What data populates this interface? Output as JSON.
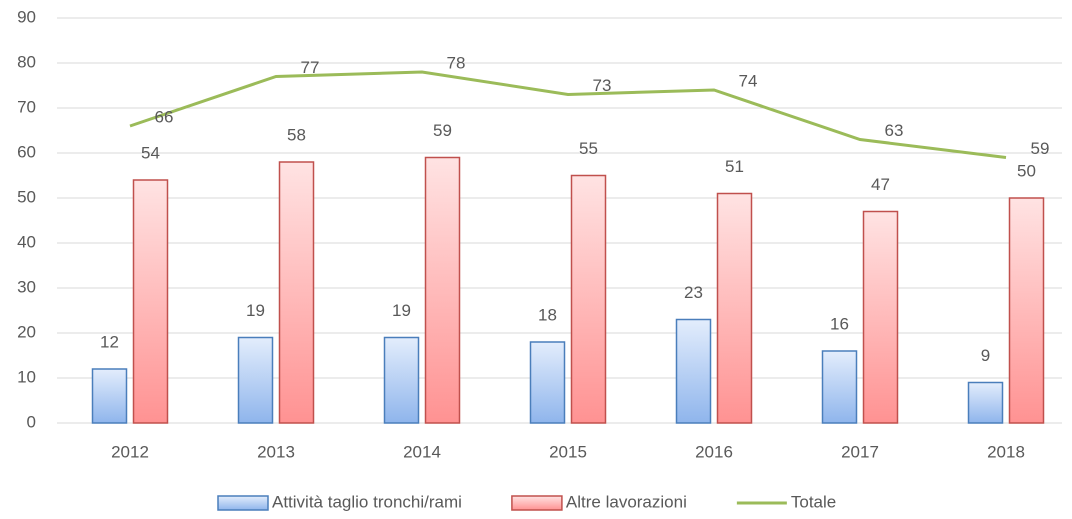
{
  "chart_data": {
    "type": "bar",
    "categories": [
      "2012",
      "2013",
      "2014",
      "2015",
      "2016",
      "2017",
      "2018"
    ],
    "series": [
      {
        "name": "Attività taglio tronchi/rami",
        "color": "#4a7ebb",
        "values": [
          12,
          19,
          19,
          18,
          23,
          16,
          9
        ]
      },
      {
        "name": "Altre lavorazioni",
        "color": "#c0504d",
        "values": [
          54,
          58,
          59,
          55,
          51,
          47,
          50
        ]
      },
      {
        "name": "Totale",
        "type": "line",
        "color": "#9bbb59",
        "values": [
          66,
          77,
          78,
          73,
          74,
          63,
          59
        ]
      }
    ],
    "ylim": [
      0,
      90
    ],
    "yticks": [
      0,
      10,
      20,
      30,
      40,
      50,
      60,
      70,
      80,
      90
    ],
    "grid": true,
    "legend": "bottom"
  }
}
